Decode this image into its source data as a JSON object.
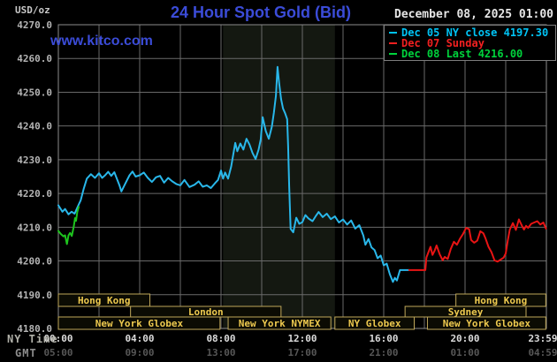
{
  "header": {
    "unit_label": "USD/oz",
    "title": "24 Hour Spot Gold (Bid)",
    "datetime": "December 08, 2025 01:00",
    "watermark": "www.kitco.com"
  },
  "legend": {
    "items": [
      {
        "label": "Dec 05 NY close 4197.30",
        "color": "#00c3f5"
      },
      {
        "label": "Dec 07 Sunday",
        "color": "#f22020"
      },
      {
        "label": "Dec 08 Last 4216.00",
        "color": "#00d43c"
      }
    ]
  },
  "axis": {
    "ny_time_label": "NY Time",
    "gmt_label": "GMT",
    "x_ticks": [
      {
        "hour": 0,
        "ny": "00:00",
        "gmt": "05:00"
      },
      {
        "hour": 4,
        "ny": "04:00",
        "gmt": "09:00"
      },
      {
        "hour": 8,
        "ny": "08:00",
        "gmt": "13:00"
      },
      {
        "hour": 12,
        "ny": "12:00",
        "gmt": "17:00"
      },
      {
        "hour": 16,
        "ny": "16:00",
        "gmt": "21:00"
      },
      {
        "hour": 20,
        "ny": "20:00",
        "gmt": "01:00"
      },
      {
        "hour": 23.983,
        "ny": "23:59",
        "gmt": "04:59"
      }
    ],
    "y_ticks": [
      "4270.0",
      "4260.0",
      "4250.0",
      "4240.0",
      "4230.0",
      "4220.0",
      "4210.0",
      "4200.0",
      "4190.0",
      "4180.0"
    ]
  },
  "chart_data": {
    "type": "line",
    "title": "24 Hour Spot Gold (Bid)",
    "ylabel": "USD/oz",
    "ylim": [
      4180,
      4270
    ],
    "xlim_hours": [
      0,
      24
    ],
    "grid": {
      "x_step_hours": 2,
      "y_step": 10,
      "color": "#6a6a6a",
      "border_color": "#8c8c8c"
    },
    "highlight_band_hours": [
      8.1,
      13.6
    ],
    "highlight_band_color": "#141811",
    "series": [
      {
        "name": "Dec 05 NY close",
        "close": 4197.3,
        "color": "#29b7ea",
        "points": [
          [
            0,
            4216.5
          ],
          [
            0.2,
            4214.6
          ],
          [
            0.33,
            4215.4
          ],
          [
            0.5,
            4213.8
          ],
          [
            0.65,
            4214.6
          ],
          [
            0.8,
            4214.0
          ],
          [
            0.95,
            4216.0
          ],
          [
            1.1,
            4218.0
          ],
          [
            1.25,
            4221.5
          ],
          [
            1.4,
            4224.4
          ],
          [
            1.6,
            4225.7
          ],
          [
            1.8,
            4224.6
          ],
          [
            2.0,
            4226.0
          ],
          [
            2.15,
            4224.6
          ],
          [
            2.3,
            4225.4
          ],
          [
            2.45,
            4226.4
          ],
          [
            2.6,
            4225.2
          ],
          [
            2.75,
            4226.3
          ],
          [
            3.0,
            4222.5
          ],
          [
            3.1,
            4220.6
          ],
          [
            3.3,
            4223.0
          ],
          [
            3.5,
            4225.4
          ],
          [
            3.65,
            4226.5
          ],
          [
            3.8,
            4225.0
          ],
          [
            4.0,
            4225.4
          ],
          [
            4.2,
            4226.2
          ],
          [
            4.4,
            4224.6
          ],
          [
            4.6,
            4223.4
          ],
          [
            4.8,
            4224.8
          ],
          [
            5.0,
            4225.2
          ],
          [
            5.2,
            4223.2
          ],
          [
            5.4,
            4224.6
          ],
          [
            5.6,
            4223.6
          ],
          [
            5.8,
            4222.8
          ],
          [
            6.0,
            4222.4
          ],
          [
            6.2,
            4224.0
          ],
          [
            6.45,
            4221.9
          ],
          [
            6.7,
            4222.6
          ],
          [
            6.9,
            4223.6
          ],
          [
            7.1,
            4222.0
          ],
          [
            7.3,
            4222.4
          ],
          [
            7.5,
            4221.6
          ],
          [
            7.7,
            4223.0
          ],
          [
            7.85,
            4224.0
          ],
          [
            8.0,
            4226.8
          ],
          [
            8.1,
            4224.4
          ],
          [
            8.2,
            4226.2
          ],
          [
            8.35,
            4224.4
          ],
          [
            8.5,
            4228.0
          ],
          [
            8.6,
            4231.5
          ],
          [
            8.7,
            4235.0
          ],
          [
            8.8,
            4232.5
          ],
          [
            8.95,
            4234.8
          ],
          [
            9.1,
            4233.0
          ],
          [
            9.25,
            4236.2
          ],
          [
            9.4,
            4234.5
          ],
          [
            9.55,
            4232.0
          ],
          [
            9.7,
            4230.2
          ],
          [
            9.85,
            4233.0
          ],
          [
            9.95,
            4236.0
          ],
          [
            10.05,
            4242.6
          ],
          [
            10.2,
            4238.5
          ],
          [
            10.35,
            4236.2
          ],
          [
            10.5,
            4239.8
          ],
          [
            10.6,
            4244.0
          ],
          [
            10.7,
            4249.0
          ],
          [
            10.78,
            4257.5
          ],
          [
            10.85,
            4253.0
          ],
          [
            10.95,
            4248.0
          ],
          [
            11.05,
            4245.2
          ],
          [
            11.15,
            4243.8
          ],
          [
            11.25,
            4242.0
          ],
          [
            11.3,
            4234.0
          ],
          [
            11.35,
            4222.0
          ],
          [
            11.42,
            4209.5
          ],
          [
            11.55,
            4208.5
          ],
          [
            11.7,
            4212.8
          ],
          [
            11.85,
            4211.0
          ],
          [
            12.0,
            4211.5
          ],
          [
            12.15,
            4213.6
          ],
          [
            12.3,
            4212.6
          ],
          [
            12.5,
            4211.8
          ],
          [
            12.65,
            4213.2
          ],
          [
            12.8,
            4214.5
          ],
          [
            13.0,
            4213.0
          ],
          [
            13.2,
            4214.0
          ],
          [
            13.4,
            4212.4
          ],
          [
            13.6,
            4213.2
          ],
          [
            13.8,
            4211.4
          ],
          [
            14.0,
            4212.3
          ],
          [
            14.2,
            4210.8
          ],
          [
            14.4,
            4212.0
          ],
          [
            14.6,
            4209.6
          ],
          [
            14.8,
            4210.6
          ],
          [
            15.0,
            4207.5
          ],
          [
            15.1,
            4204.8
          ],
          [
            15.25,
            4206.5
          ],
          [
            15.4,
            4204.0
          ],
          [
            15.55,
            4203.2
          ],
          [
            15.7,
            4200.8
          ],
          [
            15.85,
            4201.6
          ],
          [
            16.0,
            4198.7
          ],
          [
            16.15,
            4199.2
          ],
          [
            16.3,
            4196.1
          ],
          [
            16.45,
            4193.8
          ],
          [
            16.55,
            4195.0
          ],
          [
            16.65,
            4194.2
          ],
          [
            16.8,
            4197.3
          ],
          [
            17.25,
            4197.3
          ]
        ]
      },
      {
        "name": "Dec 07 Sunday",
        "color": "#e81414",
        "points": [
          [
            17.25,
            4197.3
          ],
          [
            18.05,
            4197.3
          ],
          [
            18.1,
            4201.0
          ],
          [
            18.2,
            4202.6
          ],
          [
            18.3,
            4204.2
          ],
          [
            18.4,
            4201.8
          ],
          [
            18.5,
            4203.0
          ],
          [
            18.6,
            4204.6
          ],
          [
            18.75,
            4202.0
          ],
          [
            18.9,
            4200.2
          ],
          [
            19.0,
            4201.2
          ],
          [
            19.15,
            4200.6
          ],
          [
            19.3,
            4203.6
          ],
          [
            19.45,
            4205.7
          ],
          [
            19.6,
            4204.8
          ],
          [
            19.75,
            4206.6
          ],
          [
            19.9,
            4208.0
          ],
          [
            20.05,
            4209.8
          ],
          [
            20.2,
            4209.4
          ],
          [
            20.3,
            4206.2
          ],
          [
            20.45,
            4205.4
          ],
          [
            20.6,
            4206.0
          ],
          [
            20.75,
            4208.8
          ],
          [
            20.9,
            4208.2
          ],
          [
            21.0,
            4206.8
          ],
          [
            21.15,
            4204.2
          ],
          [
            21.3,
            4202.6
          ],
          [
            21.45,
            4200.2
          ],
          [
            21.6,
            4199.8
          ],
          [
            21.75,
            4200.4
          ],
          [
            21.9,
            4201.0
          ],
          [
            22.0,
            4202.2
          ],
          [
            22.1,
            4206.0
          ],
          [
            22.2,
            4209.3
          ],
          [
            22.35,
            4211.2
          ],
          [
            22.5,
            4209.2
          ],
          [
            22.65,
            4212.3
          ],
          [
            22.8,
            4210.4
          ],
          [
            22.9,
            4209.3
          ],
          [
            23.0,
            4210.4
          ],
          [
            23.1,
            4209.8
          ],
          [
            23.25,
            4211.0
          ],
          [
            23.4,
            4211.4
          ],
          [
            23.55,
            4211.8
          ],
          [
            23.7,
            4210.8
          ],
          [
            23.85,
            4211.4
          ],
          [
            23.98,
            4209.6
          ]
        ]
      },
      {
        "name": "Dec 08 Last",
        "last": 4216.0,
        "color": "#1ec41e",
        "points": [
          [
            0.0,
            4208.9
          ],
          [
            0.12,
            4208.0
          ],
          [
            0.25,
            4207.3
          ],
          [
            0.33,
            4207.6
          ],
          [
            0.42,
            4205.0
          ],
          [
            0.5,
            4207.6
          ],
          [
            0.58,
            4208.3
          ],
          [
            0.66,
            4207.4
          ],
          [
            0.75,
            4210.0
          ],
          [
            0.82,
            4212.7
          ],
          [
            0.87,
            4211.9
          ],
          [
            0.93,
            4214.5
          ],
          [
            1.0,
            4216.0
          ]
        ]
      }
    ],
    "sessions": [
      {
        "row": 0,
        "label": "Hong Kong",
        "start": 0,
        "end": 4.5
      },
      {
        "row": 0,
        "label": "Hong Kong",
        "start": 19.55,
        "end": 23.97
      },
      {
        "row": 1,
        "label": "London",
        "start": 3.55,
        "end": 10.95
      },
      {
        "row": 1,
        "label": "Sydney",
        "start": 17.05,
        "end": 23.0
      },
      {
        "row": 2,
        "label": "New York Globex",
        "start": 0,
        "end": 7.95
      },
      {
        "row": 2,
        "label": "New York NYMEX",
        "start": 8.35,
        "end": 13.4
      },
      {
        "row": 2,
        "label": "NY Globex",
        "start": 13.6,
        "end": 17.5
      },
      {
        "row": 2,
        "label": "New York Globex",
        "start": 18.15,
        "end": 23.97
      }
    ],
    "session_style": {
      "border": "#bfa75a",
      "text": "#edc94f",
      "fill": "#0b0b03"
    }
  }
}
